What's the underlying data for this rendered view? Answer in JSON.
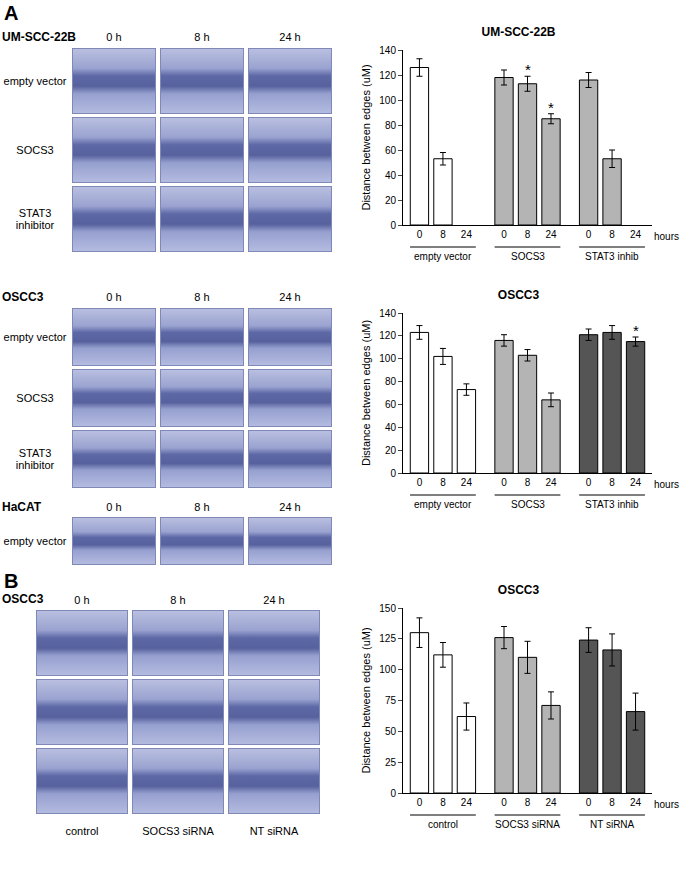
{
  "panels": {
    "A": {
      "label": "A",
      "groups": [
        {
          "title": "UM-SCC-22B",
          "columns": [
            "0 h",
            "8 h",
            "24 h"
          ],
          "rows": [
            "empty vector",
            "SOCS3",
            "STAT3 inhibitor"
          ]
        },
        {
          "title": "OSCC3",
          "columns": [
            "0 h",
            "8 h",
            "24 h"
          ],
          "rows": [
            "empty vector",
            "SOCS3",
            "STAT3 inhibitor"
          ]
        },
        {
          "title": "HaCAT",
          "columns": [
            "0 h",
            "8 h",
            "24 h"
          ],
          "rows": [
            "empty vector"
          ]
        }
      ]
    },
    "B": {
      "label": "B",
      "title": "OSCC3",
      "columns": [
        "0 h",
        "8 h",
        "24 h"
      ],
      "row_count": 3,
      "captions": [
        "control",
        "SOCS3 siRNA",
        "NT siRNA"
      ]
    }
  },
  "chart_data": [
    {
      "type": "bar",
      "title": "UM-SCC-22B",
      "y_label": "Distance between edges (uM)",
      "x_label": "hours",
      "categories": [
        "0",
        "8",
        "24"
      ],
      "ylim": [
        0,
        140
      ],
      "yticks": [
        0,
        20,
        40,
        60,
        80,
        100,
        120,
        140
      ],
      "series": [
        {
          "name": "empty vector",
          "color": "#ffffff",
          "values": [
            126,
            53,
            null
          ],
          "errors": [
            7,
            5,
            null
          ],
          "marks": [
            null,
            null,
            null
          ]
        },
        {
          "name": "SOCS3",
          "color": "#b4b4b4",
          "values": [
            118,
            113,
            85
          ],
          "errors": [
            6,
            6,
            4
          ],
          "marks": [
            null,
            "*",
            "*"
          ]
        },
        {
          "name": "STAT3 inhib",
          "color": "#b4b4b4",
          "values": [
            116,
            53,
            null
          ],
          "errors": [
            6,
            7,
            null
          ],
          "marks": [
            null,
            null,
            null
          ]
        }
      ]
    },
    {
      "type": "bar",
      "title": "OSCC3",
      "y_label": "Distance between edges (uM)",
      "x_label": "hours",
      "categories": [
        "0",
        "8",
        "24"
      ],
      "ylim": [
        0,
        140
      ],
      "yticks": [
        0,
        20,
        40,
        60,
        80,
        100,
        120,
        140
      ],
      "series": [
        {
          "name": "empty vector",
          "color": "#ffffff",
          "values": [
            123,
            102,
            73
          ],
          "errors": [
            6,
            7,
            5
          ],
          "marks": [
            null,
            null,
            null
          ]
        },
        {
          "name": "SOCS3",
          "color": "#b4b4b4",
          "values": [
            116,
            103,
            64
          ],
          "errors": [
            5,
            5,
            6
          ],
          "marks": [
            null,
            null,
            null
          ]
        },
        {
          "name": "STAT3 inhib",
          "color": "#555555",
          "values": [
            121,
            123,
            115
          ],
          "errors": [
            5,
            6,
            4
          ],
          "marks": [
            null,
            null,
            "*"
          ]
        }
      ]
    },
    {
      "type": "bar",
      "title": "OSCC3",
      "y_label": "Distance between edges (uM)",
      "x_label": "hours",
      "categories": [
        "0",
        "8",
        "24"
      ],
      "ylim": [
        0,
        150
      ],
      "yticks": [
        0,
        25,
        50,
        75,
        100,
        125,
        150
      ],
      "series": [
        {
          "name": "control",
          "color": "#ffffff",
          "values": [
            130,
            112,
            62
          ],
          "errors": [
            12,
            10,
            11
          ],
          "marks": [
            null,
            null,
            null
          ]
        },
        {
          "name": "SOCS3 siRNA",
          "color": "#b4b4b4",
          "values": [
            126,
            110,
            71
          ],
          "errors": [
            9,
            13,
            11
          ],
          "marks": [
            null,
            null,
            null
          ]
        },
        {
          "name": "NT siRNA",
          "color": "#555555",
          "values": [
            124,
            116,
            66
          ],
          "errors": [
            10,
            13,
            15
          ],
          "marks": [
            null,
            null,
            null
          ]
        }
      ]
    }
  ]
}
